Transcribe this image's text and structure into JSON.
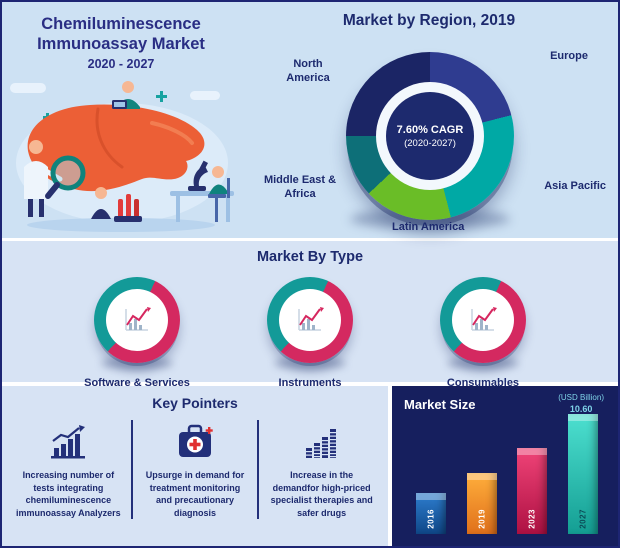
{
  "palette": {
    "border_navy": "#1d2573",
    "panel_light_blue": "#cde1f3",
    "panel_mid_blue": "#d7e3f4",
    "panel_dark_navy": "#161f5e",
    "title_indigo": "#2a2e84",
    "label_navy": "#1d2a6e",
    "accent_crimson": "#d42960",
    "accent_teal": "#139a98"
  },
  "header": {
    "title": "Chemiluminescence Immunoassay Market",
    "subtitle": "2020 - 2027"
  },
  "region_chart": {
    "title": "Market by Region, 2019",
    "center_line1": "7.60% CAGR",
    "center_line2": "(2020-2027)",
    "labels": {
      "north_america": "North America",
      "europe": "Europe",
      "asia_pacific": "Asia Pacific",
      "latin_america": "Latin America",
      "middle_east_africa": "Middle East & Africa"
    }
  },
  "type_section": {
    "title": "Market By Type",
    "items": [
      {
        "label": "Software & Services"
      },
      {
        "label": "Instruments"
      },
      {
        "label": "Consumables"
      }
    ]
  },
  "key_pointers": {
    "title": "Key Pointers",
    "items": [
      {
        "icon": "growth-trend-icon",
        "text": "Increasing number of tests integrating chemiluminescence immunoassay Analyzers"
      },
      {
        "icon": "first-aid-kit-icon",
        "text": "Upsurge in demand for treatment monitoring and precautionary diagnosis"
      },
      {
        "icon": "bar-chart-icon",
        "text": "Increase in the demandfor high-priced specialist therapies and safer drugs"
      }
    ]
  },
  "market_size": {
    "title": "Market Size",
    "unit_label": "(USD Billion)",
    "top_value": "10.60"
  },
  "chart_data": [
    {
      "type": "pie",
      "donut": true,
      "title": "Market by Region, 2019",
      "labels": [
        "Europe",
        "Asia Pacific",
        "Latin America",
        "Middle East & Africa",
        "North America"
      ],
      "values": [
        21,
        25,
        17,
        12,
        25
      ],
      "colors": [
        "#2f3c90",
        "#00a9a5",
        "#6abd27",
        "#0d6f78",
        "#1b2565"
      ],
      "center_label": "7.60% CAGR (2020-2027)",
      "legend_position": "around",
      "note": "segment shares estimated from arc angles; no numeric labels shown"
    },
    {
      "type": "pie",
      "donut": true,
      "title": "Software & Services",
      "labels": [
        "highlight",
        "remainder"
      ],
      "values": [
        55,
        45
      ],
      "colors": [
        "#d42960",
        "#139a98"
      ],
      "start_angle_deg": 25,
      "note": "split estimated; no numeric labels shown"
    },
    {
      "type": "pie",
      "donut": true,
      "title": "Instruments",
      "labels": [
        "highlight",
        "remainder"
      ],
      "values": [
        55,
        45
      ],
      "colors": [
        "#d42960",
        "#139a98"
      ],
      "start_angle_deg": 25,
      "note": "split estimated; no numeric labels shown"
    },
    {
      "type": "pie",
      "donut": true,
      "title": "Consumables",
      "labels": [
        "highlight",
        "remainder"
      ],
      "values": [
        55,
        45
      ],
      "colors": [
        "#d42960",
        "#139a98"
      ],
      "start_angle_deg": 25,
      "note": "split estimated; no numeric labels shown"
    },
    {
      "type": "bar",
      "title": "Market Size",
      "ylabel": "(USD Billion)",
      "categories": [
        "2016",
        "2019",
        "2023",
        "2027"
      ],
      "values": [
        3.6,
        5.4,
        7.6,
        10.6
      ],
      "colors_top": [
        "#2e7ecf",
        "#ffaf3c",
        "#f04478",
        "#4de0d0"
      ],
      "colors_bottom": [
        "#0f4788",
        "#e0701b",
        "#ae1143",
        "#149e93"
      ],
      "label_colors": [
        "#ffffff",
        "#ffffff",
        "#ffffff",
        "#0c4a56"
      ],
      "note": "only 10.60 labeled in source; other bar values estimated from heights"
    }
  ]
}
